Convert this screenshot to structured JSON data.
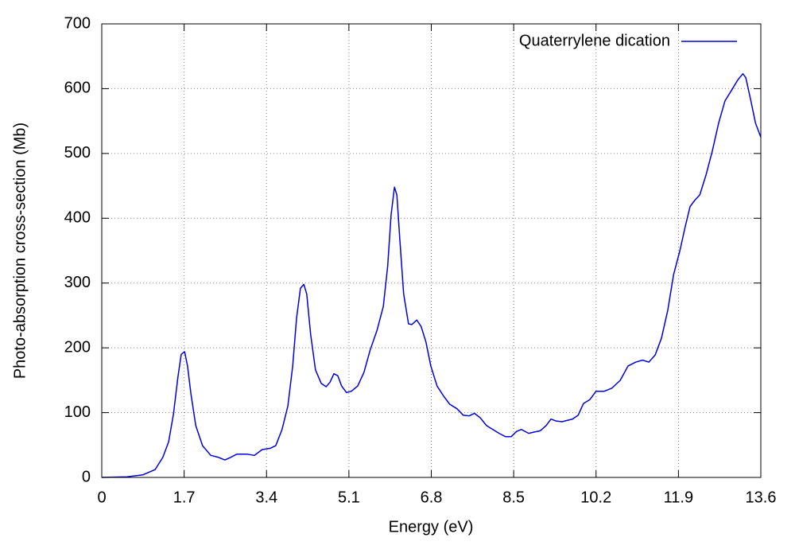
{
  "chart_data": {
    "type": "line",
    "xlabel": "Energy (eV)",
    "ylabel": "Photo-absorption cross-section (Mb)",
    "xlim": [
      0,
      13.6
    ],
    "xticks": [
      0,
      1.7,
      3.4,
      5.1,
      6.8,
      8.5,
      10.2,
      11.9,
      13.6
    ],
    "ylim": [
      0,
      700
    ],
    "yticks": [
      0,
      100,
      200,
      300,
      400,
      500,
      600,
      700
    ],
    "grid": true,
    "legend": "top-right",
    "x": [
      0,
      0.52,
      0.85,
      1.1,
      1.26,
      1.38,
      1.48,
      1.57,
      1.64,
      1.71,
      1.77,
      1.84,
      1.94,
      2.08,
      2.25,
      2.41,
      2.54,
      2.66,
      2.79,
      2.99,
      3.15,
      3.31,
      3.48,
      3.59,
      3.72,
      3.84,
      3.94,
      4.02,
      4.1,
      4.17,
      4.23,
      4.31,
      4.41,
      4.53,
      4.63,
      4.71,
      4.79,
      4.87,
      4.95,
      5.05,
      5.15,
      5.28,
      5.41,
      5.54,
      5.68,
      5.81,
      5.9,
      5.97,
      6.04,
      6.09,
      6.15,
      6.23,
      6.33,
      6.4,
      6.5,
      6.59,
      6.69,
      6.79,
      6.92,
      7.05,
      7.18,
      7.33,
      7.46,
      7.58,
      7.69,
      7.81,
      7.94,
      8.07,
      8.2,
      8.33,
      8.45,
      8.56,
      8.66,
      8.81,
      8.92,
      9.05,
      9.17,
      9.27,
      9.38,
      9.5,
      9.6,
      9.71,
      9.83,
      9.94,
      10.07,
      10.2,
      10.37,
      10.53,
      10.7,
      10.86,
      11.02,
      11.16,
      11.29,
      11.42,
      11.55,
      11.68,
      11.8,
      11.93,
      12.04,
      12.14,
      12.24,
      12.34,
      12.47,
      12.6,
      12.73,
      12.86,
      13.0,
      13.13,
      13.23,
      13.29,
      13.39,
      13.49,
      13.6
    ],
    "series": [
      {
        "name": "Quaterrylene dication",
        "color": "#0000e0",
        "values": [
          0,
          1,
          4,
          12,
          31,
          55,
          98,
          154,
          190,
          194,
          172,
          129,
          80,
          49,
          34,
          31,
          27,
          31,
          36,
          36,
          34,
          43,
          45,
          49,
          74,
          110,
          172,
          246,
          292,
          298,
          283,
          221,
          166,
          145,
          140,
          147,
          160,
          157,
          141,
          131,
          133,
          141,
          162,
          197,
          227,
          264,
          326,
          405,
          448,
          436,
          368,
          283,
          237,
          236,
          243,
          233,
          209,
          172,
          141,
          126,
          113,
          106,
          96,
          95,
          99,
          92,
          80,
          74,
          68,
          63,
          63,
          71,
          74,
          68,
          70,
          72,
          80,
          90,
          87,
          86,
          88,
          90,
          96,
          114,
          120,
          133,
          133,
          138,
          150,
          172,
          178,
          181,
          178,
          189,
          215,
          258,
          313,
          350,
          387,
          418,
          428,
          436,
          467,
          504,
          547,
          581,
          598,
          614,
          623,
          617,
          583,
          547,
          525
        ]
      }
    ]
  }
}
